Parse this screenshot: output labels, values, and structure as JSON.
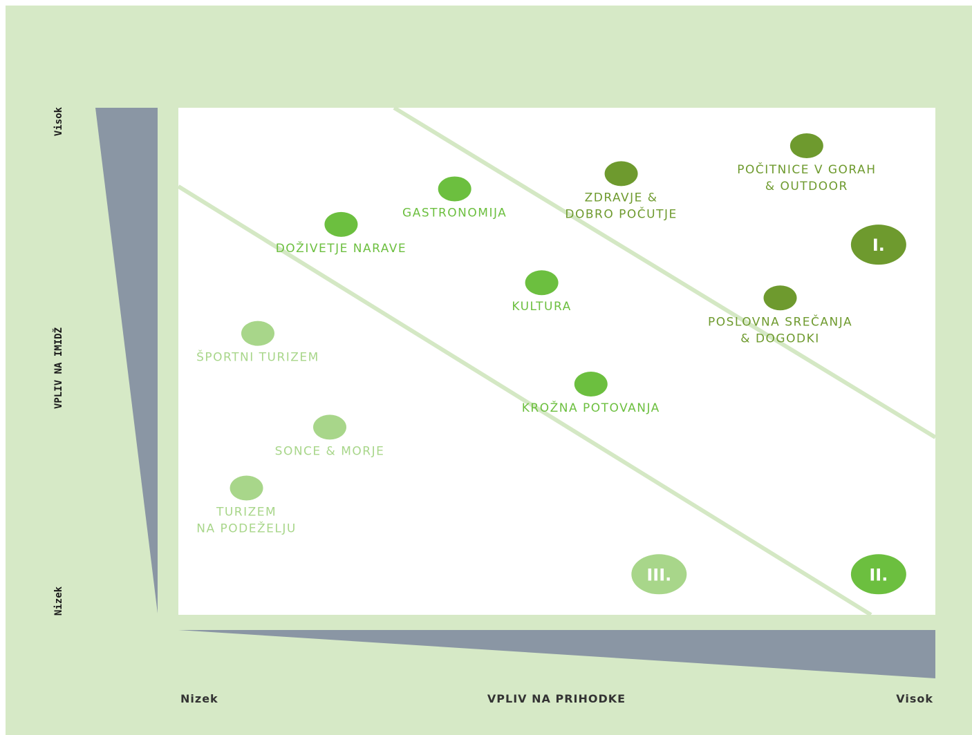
{
  "chart_data": {
    "type": "scatter",
    "title": "",
    "xlabel": "VPLIV NA PRIHODKE",
    "ylabel": "VPLIV NA IMIDŽ",
    "x_low_label": "Nizek",
    "x_high_label": "Visok",
    "y_low_label": "Nizek",
    "y_high_label": "Visok",
    "xlim": [
      0,
      100
    ],
    "ylim": [
      0,
      100
    ],
    "grid": false,
    "colors": {
      "background": "#d6e9c6",
      "plot_bg": "#ffffff",
      "wedge": "#8a96a4",
      "divider": "#d4e8c4",
      "tier1": "#6e9a2e",
      "tier2": "#6cbf3f",
      "tier3": "#a8d68a"
    },
    "tiers": [
      {
        "label": "I.",
        "tier": 1,
        "x": 92.5,
        "y": 73
      },
      {
        "label": "II.",
        "tier": 2,
        "x": 92.5,
        "y": 8
      },
      {
        "label": "III.",
        "tier": 3,
        "x": 63.5,
        "y": 8
      }
    ],
    "dividers": [
      {
        "from": [
          28.5,
          100
        ],
        "to": [
          100,
          35
        ]
      },
      {
        "from": [
          0,
          84.5
        ],
        "to": [
          91.5,
          0
        ]
      }
    ],
    "points": [
      {
        "lines": [
          "POČITNICE V GORAH",
          "& OUTDOOR"
        ],
        "tier": 1,
        "x": 83,
        "y": 92.5
      },
      {
        "lines": [
          "ZDRAVJE &",
          "DOBRO POČUTJE"
        ],
        "tier": 1,
        "x": 58.5,
        "y": 87
      },
      {
        "lines": [
          "POSLOVNA SREČANJA",
          "& DOGODKI"
        ],
        "tier": 1,
        "x": 79.5,
        "y": 62.5
      },
      {
        "lines": [
          "GASTRONOMIJA"
        ],
        "tier": 2,
        "x": 36.5,
        "y": 84
      },
      {
        "lines": [
          "DOŽIVETJE NARAVE"
        ],
        "tier": 2,
        "x": 21.5,
        "y": 77
      },
      {
        "lines": [
          "KULTURA"
        ],
        "tier": 2,
        "x": 48,
        "y": 65.5
      },
      {
        "lines": [
          "KROŽNA POTOVANJA"
        ],
        "tier": 2,
        "x": 54.5,
        "y": 45.5
      },
      {
        "lines": [
          "ŠPORTNI TURIZEM"
        ],
        "tier": 3,
        "x": 10.5,
        "y": 55.5
      },
      {
        "lines": [
          "SONCE & MORJE"
        ],
        "tier": 3,
        "x": 20,
        "y": 37
      },
      {
        "lines": [
          "TURIZEM",
          "NA PODEŽELJU"
        ],
        "tier": 3,
        "x": 9,
        "y": 25
      }
    ]
  }
}
